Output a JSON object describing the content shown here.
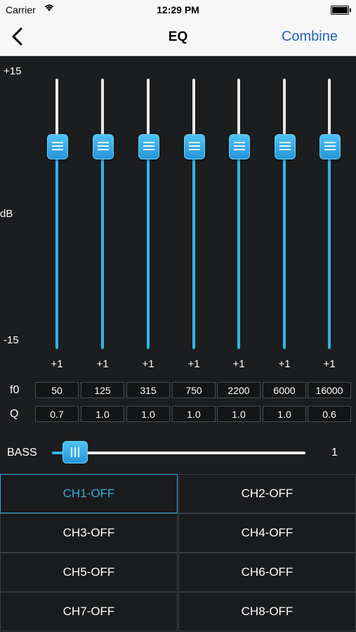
{
  "status_bar": {
    "carrier": "Carrier",
    "time": "12:29 PM"
  },
  "nav": {
    "back_icon": "chevron-left-icon",
    "title": "EQ",
    "right_button": "Combine"
  },
  "eq": {
    "scale_top": "+15",
    "scale_mid": "dB",
    "scale_bottom": "-15",
    "range_db": [
      -15,
      15
    ],
    "bands": [
      {
        "gain": "+1",
        "gain_db": 1,
        "f0": "50",
        "q": "0.7"
      },
      {
        "gain": "+1",
        "gain_db": 1,
        "f0": "125",
        "q": "1.0"
      },
      {
        "gain": "+1",
        "gain_db": 1,
        "f0": "315",
        "q": "1.0"
      },
      {
        "gain": "+1",
        "gain_db": 1,
        "f0": "750",
        "q": "1.0"
      },
      {
        "gain": "+1",
        "gain_db": 1,
        "f0": "2200",
        "q": "1.0"
      },
      {
        "gain": "+1",
        "gain_db": 1,
        "f0": "6000",
        "q": "1.0"
      },
      {
        "gain": "+1",
        "gain_db": 1,
        "f0": "16000",
        "q": "0.6"
      }
    ],
    "f0_label": "f0",
    "q_label": "Q"
  },
  "bass": {
    "label": "BASS",
    "value": "1",
    "fraction": 0.09
  },
  "channels": [
    {
      "label": "CH1-OFF",
      "active": true
    },
    {
      "label": "CH2-OFF",
      "active": false
    },
    {
      "label": "CH3-OFF",
      "active": false
    },
    {
      "label": "CH4-OFF",
      "active": false
    },
    {
      "label": "CH5-OFF",
      "active": false
    },
    {
      "label": "CH6-OFF",
      "active": false
    },
    {
      "label": "CH7-OFF",
      "active": false
    },
    {
      "label": "CH8-OFF",
      "active": false
    }
  ],
  "colors": {
    "accent": "#2fb5ea",
    "nav_link": "#2a64b3",
    "background": "#1c1d1f"
  }
}
